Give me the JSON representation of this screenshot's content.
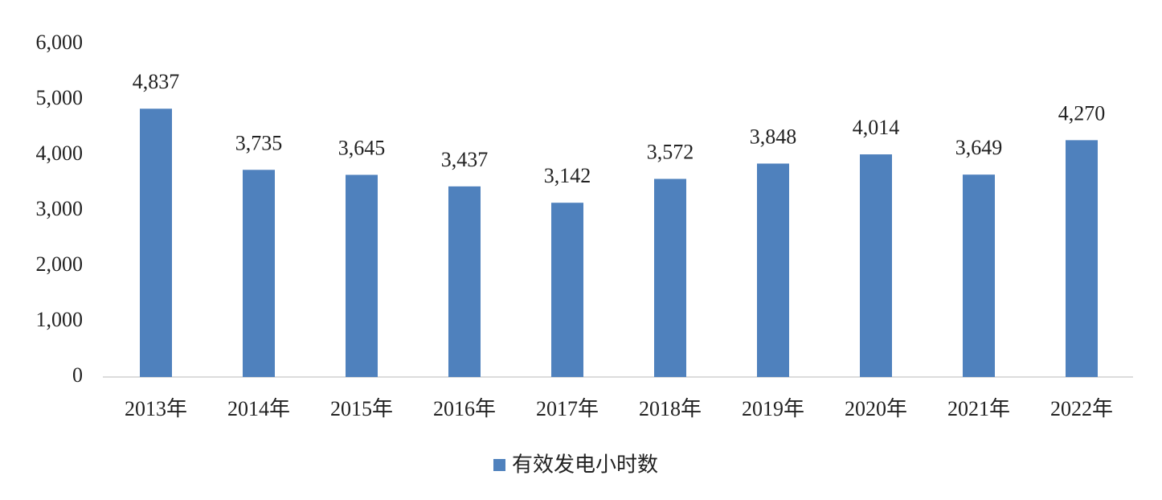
{
  "chart_data": {
    "type": "bar",
    "categories": [
      "2013年",
      "2014年",
      "2015年",
      "2016年",
      "2017年",
      "2018年",
      "2019年",
      "2020年",
      "2021年",
      "2022年"
    ],
    "series": [
      {
        "name": "有效发电小时数",
        "color": "#4f81bd",
        "values": [
          4837,
          3735,
          3645,
          3437,
          3142,
          3572,
          3848,
          4014,
          3649,
          4270
        ],
        "value_labels": [
          "4,837",
          "3,735",
          "3,645",
          "3,437",
          "3,142",
          "3,572",
          "3,848",
          "4,014",
          "3,649",
          "4,270"
        ]
      }
    ],
    "ylim": [
      0,
      6000
    ],
    "yticks": [
      0,
      {
        "value": 1000,
        "label": "1,000"
      },
      {
        "value": 2000,
        "label": "2,000"
      },
      {
        "value": 3000,
        "label": "3,000"
      },
      {
        "value": 4000,
        "label": "4,000"
      },
      {
        "value": 5000,
        "label": "5,000"
      },
      {
        "value": 6000,
        "label": "6,000"
      }
    ],
    "grid": false,
    "legend": "bottom"
  }
}
